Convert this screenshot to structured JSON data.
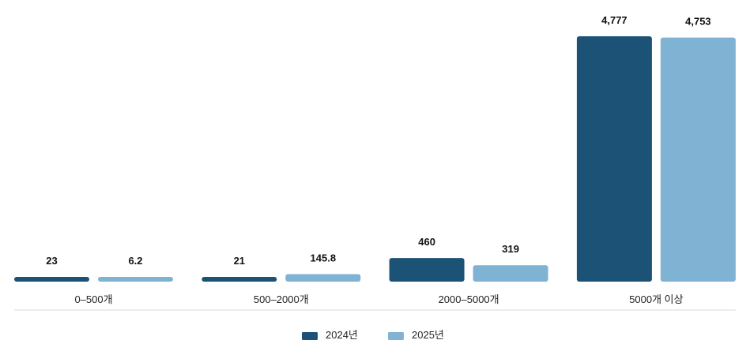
{
  "chart_data": {
    "type": "bar",
    "categories": [
      "0–500개",
      "500–2000개",
      "2000–5000개",
      "5000개 이상"
    ],
    "series": [
      {
        "name": "2024년",
        "values": [
          23,
          21,
          460,
          4777
        ],
        "labels": [
          "23",
          "21",
          "460",
          "4,777"
        ],
        "color": "#1b5276"
      },
      {
        "name": "2025년",
        "values": [
          6.2,
          145.8,
          319,
          4753
        ],
        "labels": [
          "6.2",
          "145.8",
          "319",
          "4,753"
        ],
        "color": "#7fb2d3"
      }
    ],
    "ylim": [
      0,
      4777
    ],
    "grid": false,
    "legend_position": "bottom-center"
  }
}
